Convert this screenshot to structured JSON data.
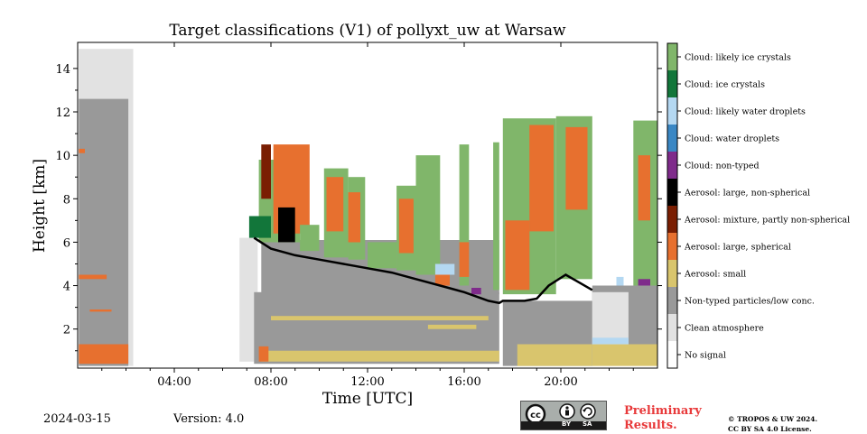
{
  "chart_data": {
    "type": "heatmap",
    "title": "Target classifications (V1) of pollyxt_uw at Warsaw",
    "xlabel": "Time [UTC]",
    "ylabel": "Height [km]",
    "x_ticks": [
      "04:00",
      "08:00",
      "12:00",
      "16:00",
      "20:00"
    ],
    "x_tick_hours": [
      4,
      8,
      12,
      16,
      20
    ],
    "xlim_hours": [
      0,
      24
    ],
    "y_ticks": [
      2,
      4,
      6,
      8,
      10,
      12,
      14
    ],
    "ylim_km": [
      0.2,
      15.2
    ],
    "classes": [
      {
        "label": "Cloud: likely ice crystals",
        "color": "#80b66a"
      },
      {
        "label": "Cloud: ice crystals",
        "color": "#12763a"
      },
      {
        "label": "Cloud: likely water droplets",
        "color": "#b4d8f2"
      },
      {
        "label": "Cloud: water droplets",
        "color": "#3a87c4"
      },
      {
        "label": "Cloud: non-typed",
        "color": "#7f2b8b"
      },
      {
        "label": "Aerosol: large, non-spherical",
        "color": "#000000"
      },
      {
        "label": "Aerosol: mixture, partly non-spherical",
        "color": "#7a1e02"
      },
      {
        "label": "Aerosol: large, spherical",
        "color": "#e7702f"
      },
      {
        "label": "Aerosol: small",
        "color": "#d9c56d"
      },
      {
        "label": "Non-typed particles/low conc.",
        "color": "#999999"
      },
      {
        "label": "Clean atmosphere",
        "color": "#e2e2e2"
      },
      {
        "label": "No signal",
        "color": "#ffffff"
      }
    ],
    "regions": [
      {
        "cls": 10,
        "t0": 0.05,
        "t1": 2.3,
        "h0": 0.3,
        "h1": 14.9
      },
      {
        "cls": 9,
        "t0": 0.05,
        "t1": 2.1,
        "h0": 0.3,
        "h1": 12.6
      },
      {
        "cls": 7,
        "t0": 0.05,
        "t1": 2.1,
        "h0": 0.4,
        "h1": 1.3
      },
      {
        "cls": 7,
        "t0": 0.05,
        "t1": 1.2,
        "h0": 4.3,
        "h1": 4.5
      },
      {
        "cls": 7,
        "t0": 0.5,
        "t1": 1.4,
        "h0": 2.8,
        "h1": 2.9
      },
      {
        "cls": 7,
        "t0": 0.05,
        "t1": 0.3,
        "h0": 10.1,
        "h1": 10.3
      },
      {
        "cls": 10,
        "t0": 6.7,
        "t1": 7.45,
        "h0": 0.5,
        "h1": 6.2
      },
      {
        "cls": 9,
        "t0": 7.3,
        "t1": 17.45,
        "h0": 0.4,
        "h1": 3.7
      },
      {
        "cls": 9,
        "t0": 7.6,
        "t1": 17.45,
        "h0": 3.6,
        "h1": 6.1
      },
      {
        "cls": 8,
        "t0": 7.6,
        "t1": 17.45,
        "h0": 0.5,
        "h1": 1.0
      },
      {
        "cls": 8,
        "t0": 8.0,
        "t1": 17.0,
        "h0": 2.4,
        "h1": 2.6
      },
      {
        "cls": 8,
        "t0": 14.5,
        "t1": 16.5,
        "h0": 2.0,
        "h1": 2.2
      },
      {
        "cls": 7,
        "t0": 7.5,
        "t1": 7.9,
        "h0": 0.5,
        "h1": 1.2
      },
      {
        "cls": 9,
        "t0": 17.6,
        "t1": 21.3,
        "h0": 0.3,
        "h1": 3.3
      },
      {
        "cls": 8,
        "t0": 18.2,
        "t1": 21.3,
        "h0": 0.3,
        "h1": 1.3
      },
      {
        "cls": 9,
        "t0": 21.3,
        "t1": 24.0,
        "h0": 0.3,
        "h1": 4.0
      },
      {
        "cls": 8,
        "t0": 21.3,
        "t1": 24.0,
        "h0": 0.3,
        "h1": 1.3
      },
      {
        "cls": 10,
        "t0": 21.3,
        "t1": 22.8,
        "h0": 1.3,
        "h1": 3.7
      },
      {
        "cls": 2,
        "t0": 21.3,
        "t1": 22.8,
        "h0": 1.3,
        "h1": 1.6
      },
      {
        "cls": 0,
        "t0": 7.5,
        "t1": 9.2,
        "h0": 6.0,
        "h1": 9.8
      },
      {
        "cls": 7,
        "t0": 8.1,
        "t1": 9.6,
        "h0": 6.4,
        "h1": 10.5
      },
      {
        "cls": 5,
        "t0": 8.3,
        "t1": 9.0,
        "h0": 6.0,
        "h1": 7.6
      },
      {
        "cls": 1,
        "t0": 7.1,
        "t1": 8.0,
        "h0": 6.2,
        "h1": 7.2
      },
      {
        "cls": 6,
        "t0": 7.6,
        "t1": 8.0,
        "h0": 8.0,
        "h1": 10.5
      },
      {
        "cls": 0,
        "t0": 9.2,
        "t1": 10.0,
        "h0": 5.6,
        "h1": 6.8
      },
      {
        "cls": 0,
        "t0": 10.2,
        "t1": 11.2,
        "h0": 5.3,
        "h1": 9.4
      },
      {
        "cls": 7,
        "t0": 10.3,
        "t1": 11.0,
        "h0": 6.5,
        "h1": 9.0
      },
      {
        "cls": 0,
        "t0": 11.2,
        "t1": 11.9,
        "h0": 5.2,
        "h1": 9.0
      },
      {
        "cls": 7,
        "t0": 11.2,
        "t1": 11.7,
        "h0": 6.0,
        "h1": 8.3
      },
      {
        "cls": 0,
        "t0": 12.0,
        "t1": 13.2,
        "h0": 4.8,
        "h1": 6.0
      },
      {
        "cls": 0,
        "t0": 13.2,
        "t1": 14.0,
        "h0": 4.7,
        "h1": 8.6
      },
      {
        "cls": 7,
        "t0": 13.3,
        "t1": 13.9,
        "h0": 5.5,
        "h1": 8.0
      },
      {
        "cls": 0,
        "t0": 14.0,
        "t1": 15.0,
        "h0": 4.5,
        "h1": 10.0
      },
      {
        "cls": 0,
        "t0": 15.8,
        "t1": 16.2,
        "h0": 4.0,
        "h1": 10.5
      },
      {
        "cls": 7,
        "t0": 15.8,
        "t1": 16.2,
        "h0": 4.4,
        "h1": 6.0
      },
      {
        "cls": 0,
        "t0": 17.2,
        "t1": 17.45,
        "h0": 3.8,
        "h1": 10.6
      },
      {
        "cls": 7,
        "t0": 14.8,
        "t1": 15.4,
        "h0": 4.0,
        "h1": 4.6
      },
      {
        "cls": 2,
        "t0": 14.8,
        "t1": 15.6,
        "h0": 4.5,
        "h1": 5.0
      },
      {
        "cls": 0,
        "t0": 17.6,
        "t1": 19.8,
        "h0": 3.6,
        "h1": 11.7
      },
      {
        "cls": 7,
        "t0": 17.7,
        "t1": 18.7,
        "h0": 3.8,
        "h1": 7.0
      },
      {
        "cls": 7,
        "t0": 18.7,
        "t1": 19.7,
        "h0": 6.5,
        "h1": 11.4
      },
      {
        "cls": 0,
        "t0": 19.8,
        "t1": 21.3,
        "h0": 4.3,
        "h1": 11.8
      },
      {
        "cls": 7,
        "t0": 20.2,
        "t1": 21.1,
        "h0": 7.5,
        "h1": 11.3
      },
      {
        "cls": 0,
        "t0": 23.0,
        "t1": 24.0,
        "h0": 4.0,
        "h1": 11.6
      },
      {
        "cls": 7,
        "t0": 23.2,
        "t1": 23.7,
        "h0": 7.0,
        "h1": 10.0
      },
      {
        "cls": 4,
        "t0": 16.3,
        "t1": 16.7,
        "h0": 3.6,
        "h1": 3.9
      },
      {
        "cls": 4,
        "t0": 23.2,
        "t1": 23.7,
        "h0": 4.0,
        "h1": 4.3
      },
      {
        "cls": 2,
        "t0": 22.3,
        "t1": 22.6,
        "h0": 4.0,
        "h1": 4.4
      }
    ],
    "boundary_layer_top_km": [
      [
        7.3,
        6.2
      ],
      [
        8.0,
        5.7
      ],
      [
        9.0,
        5.4
      ],
      [
        10.0,
        5.2
      ],
      [
        11.0,
        5.0
      ],
      [
        12.0,
        4.8
      ],
      [
        13.0,
        4.6
      ],
      [
        14.0,
        4.3
      ],
      [
        15.0,
        4.0
      ],
      [
        16.0,
        3.7
      ],
      [
        17.0,
        3.3
      ],
      [
        17.45,
        3.2
      ],
      [
        17.6,
        3.3
      ],
      [
        18.5,
        3.3
      ],
      [
        19.0,
        3.4
      ],
      [
        19.5,
        4.0
      ],
      [
        20.2,
        4.5
      ],
      [
        21.3,
        3.8
      ]
    ]
  },
  "footer": {
    "date": "2024-03-15",
    "version": "Version: 4.0",
    "preliminary": "Preliminary\nResults.",
    "copyright": "© TROPOS & UW 2024.\nCC BY SA 4.0 License.",
    "badge_by": "BY",
    "badge_sa": "SA"
  }
}
